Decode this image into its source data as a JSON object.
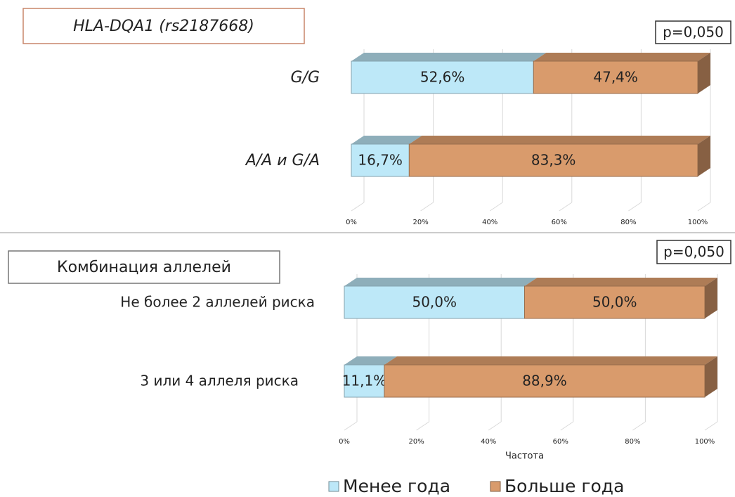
{
  "chart_data": [
    {
      "type": "bar",
      "stacked": true,
      "orientation": "horizontal",
      "title": "HLA-DQA1 (rs2187668)",
      "annotation": "p=0,050",
      "categories": [
        "G/G",
        "A/A и G/A"
      ],
      "series": [
        {
          "name": "Менее года",
          "color": "#bde8f8",
          "values": [
            52.6,
            16.7
          ],
          "value_labels": [
            "52,6%",
            "16,7%"
          ]
        },
        {
          "name": "Больше года",
          "color": "#d99b6c",
          "values": [
            47.4,
            83.3
          ],
          "value_labels": [
            "47,4%",
            "83,3%"
          ]
        }
      ],
      "xlim": [
        0,
        100
      ],
      "xticks": [
        {
          "value": 0,
          "label": "0%"
        },
        {
          "value": 20,
          "label": "20%"
        },
        {
          "value": 40,
          "label": "40%"
        },
        {
          "value": 60,
          "label": "60%"
        },
        {
          "value": 80,
          "label": "80%"
        },
        {
          "value": 100,
          "label": "100%"
        }
      ],
      "grid": true
    },
    {
      "type": "bar",
      "stacked": true,
      "orientation": "horizontal",
      "title": "Комбинация аллелей",
      "annotation": "p=0,050",
      "categories": [
        "Не более 2 аллелей риска",
        "3 или 4 аллеля риска"
      ],
      "series": [
        {
          "name": "Менее года",
          "color": "#bde8f8",
          "values": [
            50.0,
            11.1
          ],
          "value_labels": [
            "50,0%",
            "11,1%"
          ]
        },
        {
          "name": "Больше года",
          "color": "#d99b6c",
          "values": [
            50.0,
            88.9
          ],
          "value_labels": [
            "50,0%",
            "88,9%"
          ]
        }
      ],
      "xlim": [
        0,
        100
      ],
      "xticks": [
        {
          "value": 0,
          "label": "0%"
        },
        {
          "value": 20,
          "label": "20%"
        },
        {
          "value": 40,
          "label": "40%"
        },
        {
          "value": 60,
          "label": "60%"
        },
        {
          "value": 80,
          "label": "80%"
        },
        {
          "value": 100,
          "label": "100%"
        }
      ],
      "xlabel": "Частота",
      "grid": true,
      "legend": "bottom"
    }
  ]
}
